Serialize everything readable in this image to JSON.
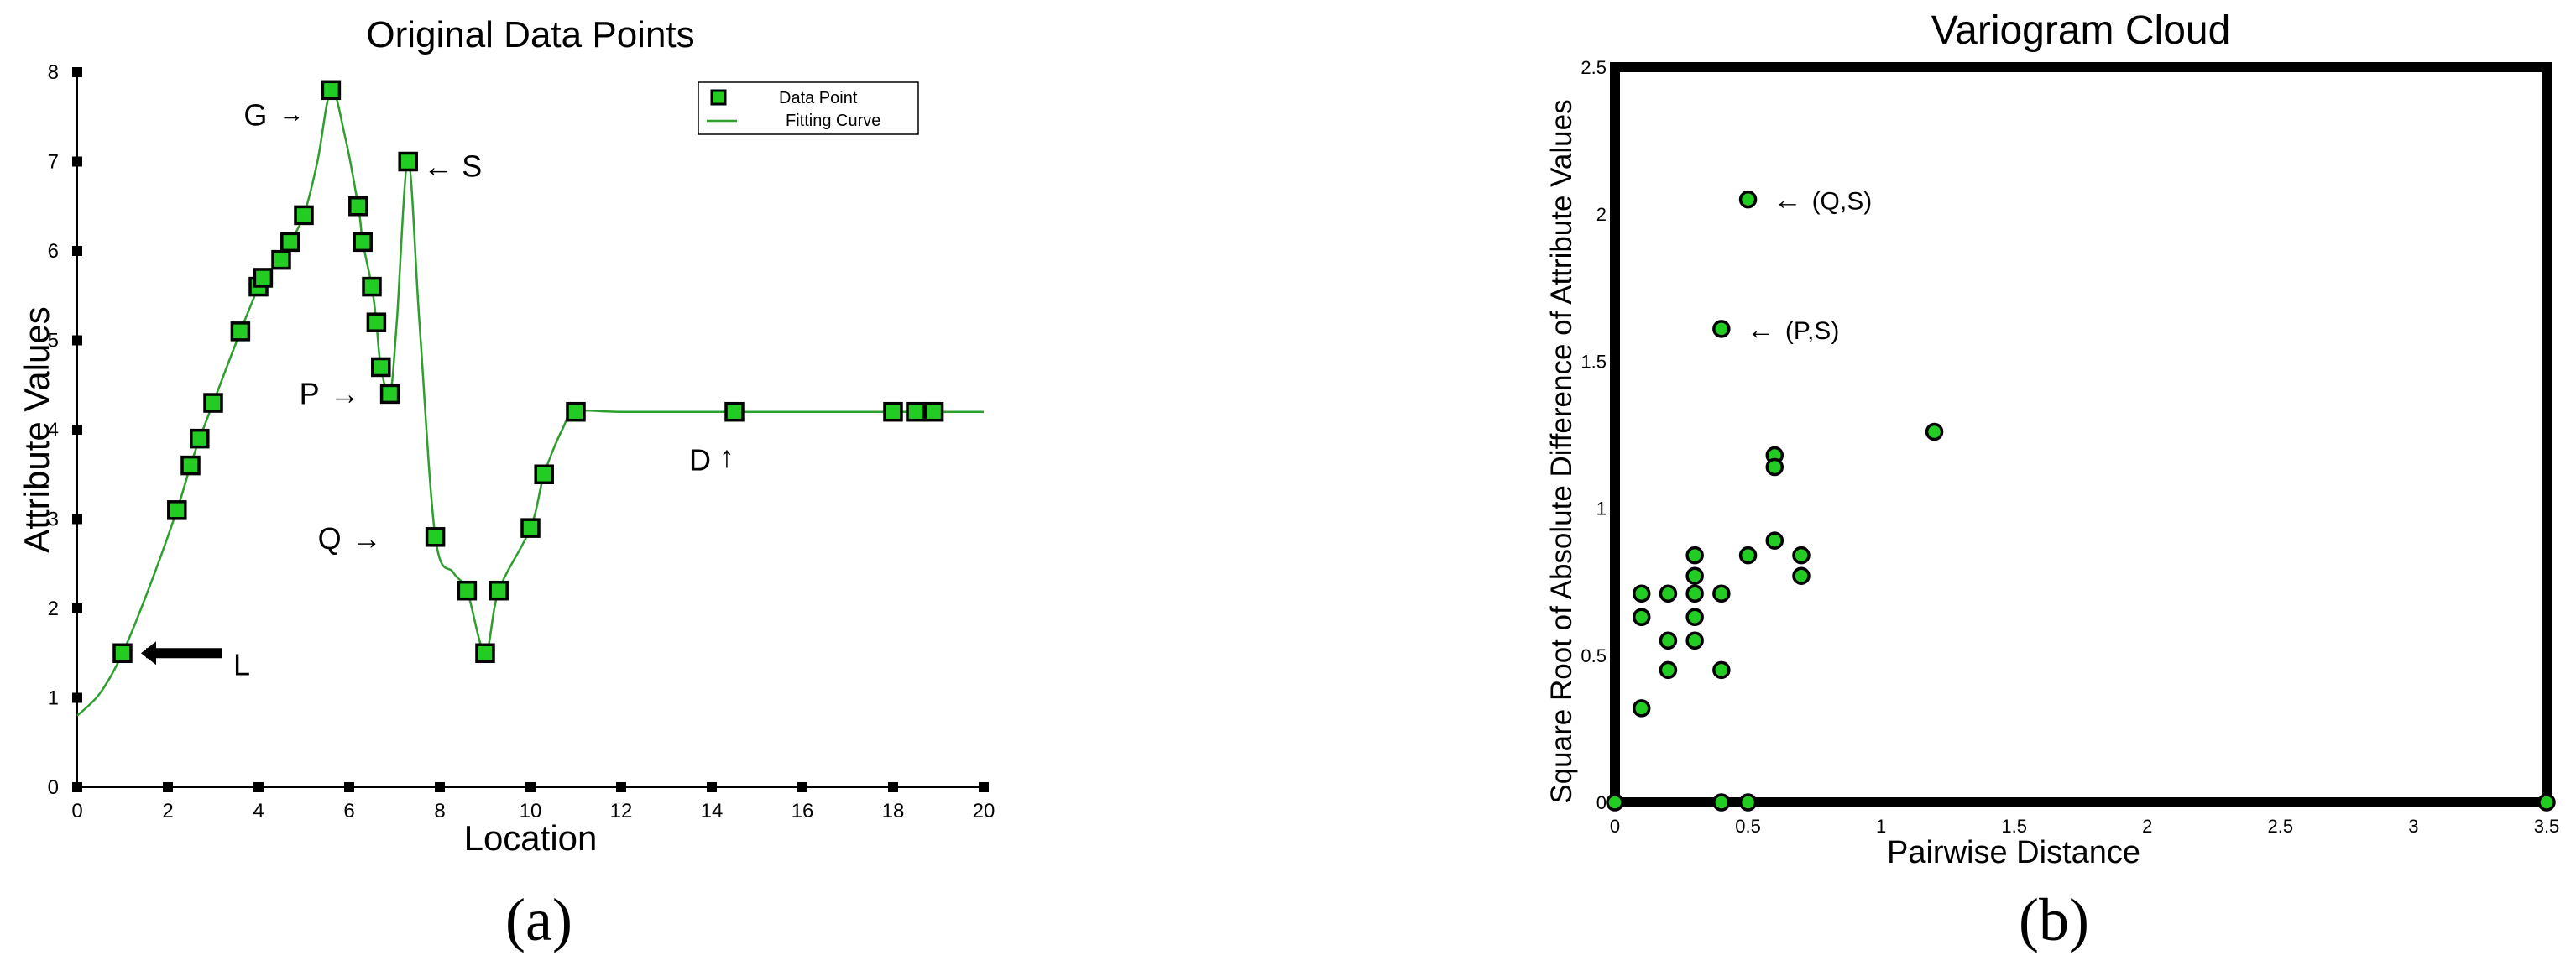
{
  "chart_data": [
    {
      "type": "scatter",
      "title": "Original Data Points",
      "xlabel": "Location",
      "ylabel": "Attribute Values",
      "xlim": [
        0,
        20
      ],
      "ylim": [
        0,
        8
      ],
      "xticks": [
        "0",
        "2",
        "4",
        "6",
        "8",
        "10",
        "12",
        "14",
        "16",
        "18",
        "20"
      ],
      "yticks": [
        "0",
        "1",
        "2",
        "3",
        "4",
        "5",
        "6",
        "7",
        "8"
      ],
      "grid": false,
      "legend_position": "top-right",
      "panel_label": "(a)",
      "series": [
        {
          "name": "Data Point",
          "type": "scatter",
          "color": "#22cc22",
          "x": [
            1,
            2.2,
            2.5,
            2.7,
            3,
            3.6,
            4,
            4.1,
            4.5,
            4.7,
            5,
            5.6,
            6.2,
            6.3,
            6.5,
            6.6,
            6.7,
            6.9,
            7.3,
            7.9,
            8.6,
            9,
            9.3,
            10,
            10.3,
            11,
            14.5,
            18,
            18.5,
            18.9
          ],
          "y": [
            1.5,
            3.1,
            3.6,
            3.9,
            4.3,
            5.1,
            5.6,
            5.7,
            5.9,
            6.1,
            6.4,
            7.8,
            6.5,
            6.1,
            5.6,
            5.2,
            4.7,
            4.4,
            7.0,
            2.8,
            2.2,
            1.5,
            2.2,
            2.9,
            3.5,
            4.2,
            4.2,
            4.2,
            4.2,
            4.2
          ]
        },
        {
          "name": "Fitting Curve",
          "type": "line",
          "color": "#2e9e2e",
          "x": [
            0,
            0.5,
            1,
            1.6,
            2.2,
            2.5,
            2.7,
            3,
            3.6,
            4,
            4.1,
            4.5,
            4.7,
            5,
            5.3,
            5.6,
            5.9,
            6.2,
            6.3,
            6.5,
            6.6,
            6.7,
            6.9,
            7.05,
            7.3,
            7.55,
            7.9,
            8.3,
            8.6,
            9,
            9.3,
            10,
            10.3,
            10.7,
            11,
            12,
            14.5,
            18,
            18.5,
            18.9,
            20
          ],
          "y": [
            0.8,
            1.05,
            1.5,
            2.25,
            3.1,
            3.6,
            3.9,
            4.3,
            5.1,
            5.6,
            5.7,
            5.9,
            6.1,
            6.4,
            7.0,
            7.8,
            7.3,
            6.5,
            6.1,
            5.6,
            5.2,
            4.7,
            4.4,
            5.2,
            7.0,
            5.2,
            2.8,
            2.4,
            2.2,
            1.5,
            2.2,
            2.9,
            3.5,
            4.0,
            4.2,
            4.2,
            4.2,
            4.2,
            4.2,
            4.2,
            4.2
          ]
        }
      ],
      "annotations": [
        {
          "text": "G",
          "arrow": "right",
          "x": 5.6,
          "y": 7.8
        },
        {
          "text": "S",
          "arrow": "left",
          "x": 7.3,
          "y": 7.0
        },
        {
          "text": "P",
          "arrow": "right",
          "x": 6.9,
          "y": 4.4
        },
        {
          "text": "Q",
          "arrow": "right",
          "x": 7.9,
          "y": 2.8
        },
        {
          "text": "D",
          "arrow": "up",
          "x": 14.5,
          "y": 4.2
        },
        {
          "text": "L",
          "arrow": "thick-left",
          "x": 1,
          "y": 1.5
        }
      ]
    },
    {
      "type": "scatter",
      "title": "Variogram Cloud",
      "xlabel": "Pairwise Distance",
      "ylabel": "Square Root of Absolute Difference of Attribute Values",
      "xlim": [
        0,
        3.5
      ],
      "ylim": [
        0,
        2.5
      ],
      "xticks": [
        "0",
        "0.5",
        "1",
        "1.5",
        "2",
        "2.5",
        "3",
        "3.5"
      ],
      "yticks": [
        "0",
        "0.5",
        "1",
        "1.5",
        "2",
        "2.5"
      ],
      "grid": false,
      "panel_label": "(b)",
      "series": [
        {
          "type": "scatter",
          "color": "#22cc22",
          "x": [
            0,
            0.1,
            0.1,
            0.1,
            0.2,
            0.2,
            0.2,
            0.3,
            0.3,
            0.3,
            0.3,
            0.3,
            0.4,
            0.4,
            0.4,
            0.4,
            0.5,
            0.5,
            0.5,
            0.6,
            0.6,
            0.6,
            0.7,
            0.7,
            1.2,
            3.5
          ],
          "y": [
            0,
            0.32,
            0.71,
            0.63,
            0.71,
            0.55,
            0.45,
            0.84,
            0.77,
            0.71,
            0.63,
            0.55,
            1.61,
            0.71,
            0.45,
            0,
            2.05,
            0.84,
            0,
            1.18,
            1.14,
            0.89,
            0.84,
            0.77,
            1.26,
            0
          ]
        }
      ],
      "annotations": [
        {
          "text": "(Q,S)",
          "arrow": "left",
          "x": 0.5,
          "y": 2.05
        },
        {
          "text": "(P,S)",
          "arrow": "left",
          "x": 0.4,
          "y": 1.61
        }
      ]
    }
  ]
}
